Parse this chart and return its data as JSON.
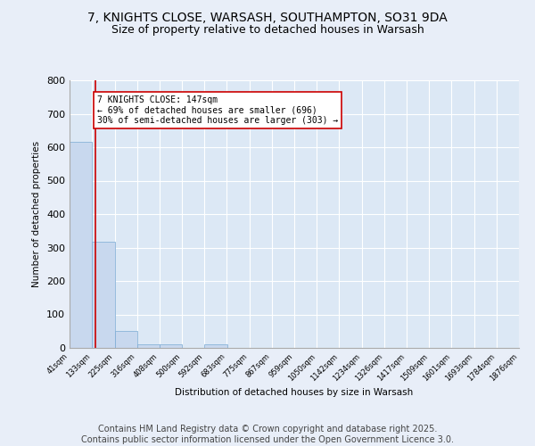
{
  "title": "7, KNIGHTS CLOSE, WARSASH, SOUTHAMPTON, SO31 9DA",
  "subtitle": "Size of property relative to detached houses in Warsash",
  "xlabel": "Distribution of detached houses by size in Warsash",
  "ylabel": "Number of detached properties",
  "bar_color": "#c8d8ee",
  "bar_edge_color": "#7aaad4",
  "background_color": "#dce8f5",
  "fig_background_color": "#e8eef8",
  "grid_color": "#ffffff",
  "bins": [
    41,
    133,
    225,
    316,
    408,
    500,
    592,
    683,
    775,
    867,
    959,
    1050,
    1142,
    1234,
    1326,
    1417,
    1509,
    1601,
    1693,
    1784,
    1876
  ],
  "bin_labels": [
    "41sqm",
    "133sqm",
    "225sqm",
    "316sqm",
    "408sqm",
    "500sqm",
    "592sqm",
    "683sqm",
    "775sqm",
    "867sqm",
    "959sqm",
    "1050sqm",
    "1142sqm",
    "1234sqm",
    "1326sqm",
    "1417sqm",
    "1509sqm",
    "1601sqm",
    "1693sqm",
    "1784sqm",
    "1876sqm"
  ],
  "values": [
    617,
    317,
    52,
    12,
    12,
    0,
    12,
    0,
    0,
    0,
    0,
    0,
    0,
    0,
    0,
    0,
    0,
    0,
    0,
    0
  ],
  "property_size": 147,
  "property_line_color": "#cc0000",
  "annotation_text": "7 KNIGHTS CLOSE: 147sqm\n← 69% of detached houses are smaller (696)\n30% of semi-detached houses are larger (303) →",
  "annotation_box_color": "#ffffff",
  "annotation_box_edge_color": "#cc0000",
  "ylim": [
    0,
    800
  ],
  "yticks": [
    0,
    100,
    200,
    300,
    400,
    500,
    600,
    700,
    800
  ],
  "footer_text": "Contains HM Land Registry data © Crown copyright and database right 2025.\nContains public sector information licensed under the Open Government Licence 3.0.",
  "title_fontsize": 10,
  "subtitle_fontsize": 9,
  "footer_fontsize": 7
}
